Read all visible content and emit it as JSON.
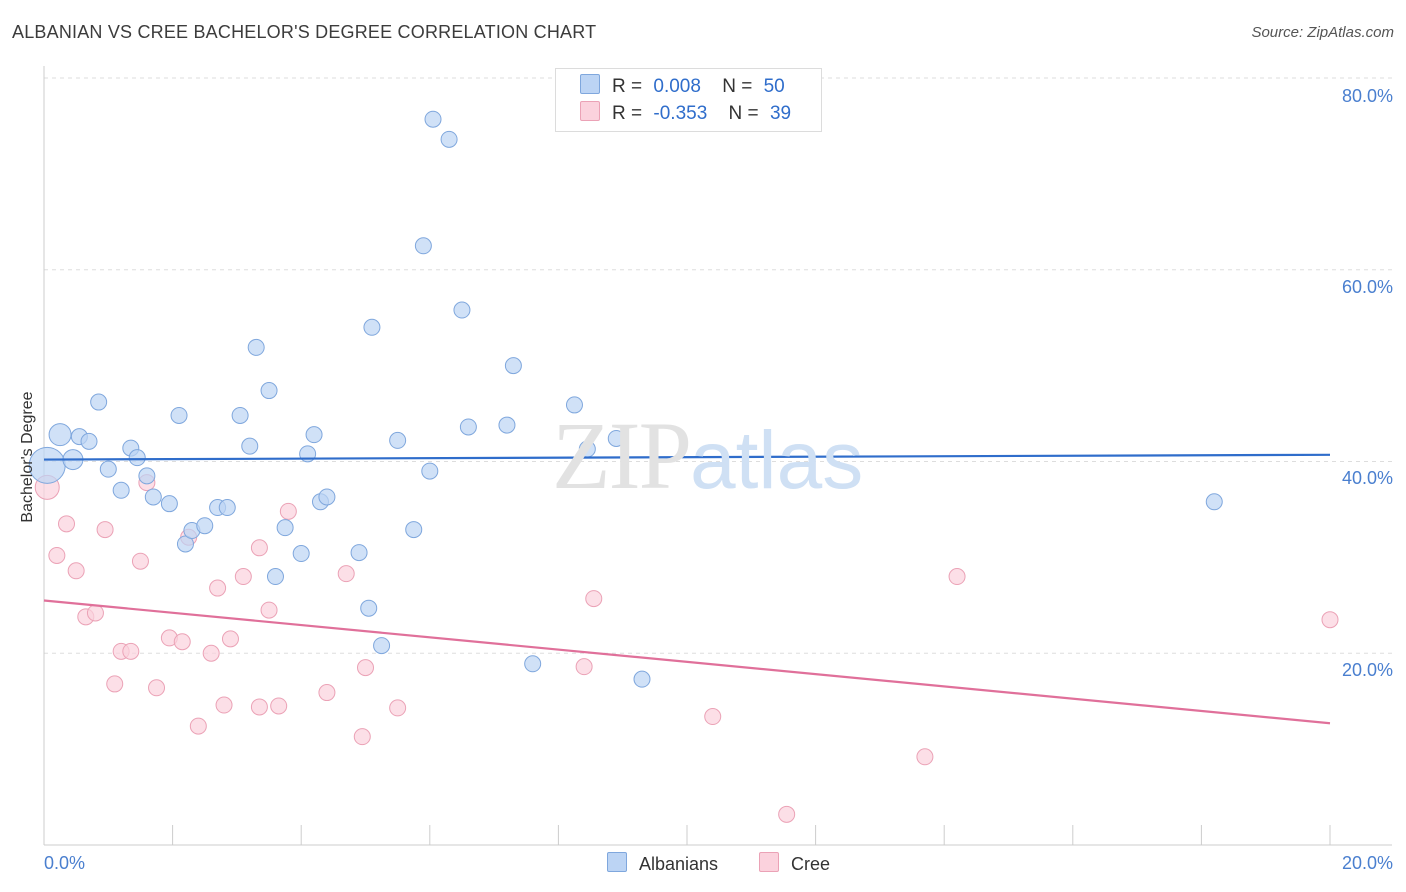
{
  "title": "ALBANIAN VS CREE BACHELOR'S DEGREE CORRELATION CHART",
  "source": "Source: ZipAtlas.com",
  "watermark": {
    "zip": "ZIP",
    "atlas": "atlas"
  },
  "stats": {
    "blue": {
      "r_label": "R =",
      "r_value": "0.008",
      "n_label": "N =",
      "n_value": "50"
    },
    "pink": {
      "r_label": "R =",
      "r_value": "-0.353",
      "n_label": "N =",
      "n_value": "39"
    }
  },
  "colors": {
    "blue_fill": "#bcd4f4",
    "blue_stroke": "#7fa7dd",
    "blue_line": "#2f6dcb",
    "pink_fill": "#fbd2dd",
    "pink_stroke": "#eba2b6",
    "pink_line": "#e0709a",
    "grid": "#dddddd",
    "axis": "#cccccc"
  },
  "chart_data": {
    "type": "scatter",
    "xlabel": "",
    "ylabel": "Bachelor's Degree",
    "xlim": [
      0,
      20
    ],
    "ylim": [
      0,
      80
    ],
    "x_ticks": [
      "0.0%",
      "20.0%"
    ],
    "y_ticks": [
      "20.0%",
      "40.0%",
      "60.0%",
      "80.0%"
    ],
    "y_tick_values": [
      20,
      40,
      60,
      80
    ],
    "grid": true,
    "legend_position": "bottom-center",
    "series": [
      {
        "name": "Albanians",
        "color": "#bcd4f4",
        "trend": [
          [
            0,
            40.2
          ],
          [
            20,
            40.7
          ]
        ],
        "points": [
          [
            0.05,
            39.6,
            18
          ],
          [
            0.25,
            42.8,
            11
          ],
          [
            0.45,
            40.2,
            10
          ],
          [
            0.55,
            42.6,
            8
          ],
          [
            0.7,
            42.1,
            8
          ],
          [
            0.85,
            46.2,
            8
          ],
          [
            1.0,
            39.2,
            8
          ],
          [
            1.2,
            37.0,
            8
          ],
          [
            1.35,
            41.4,
            8
          ],
          [
            1.45,
            40.4,
            8
          ],
          [
            1.6,
            38.5,
            8
          ],
          [
            1.7,
            36.3,
            8
          ],
          [
            1.95,
            35.6,
            8
          ],
          [
            2.1,
            44.8,
            8
          ],
          [
            2.2,
            31.4,
            8
          ],
          [
            2.3,
            32.8,
            8
          ],
          [
            2.5,
            33.3,
            8
          ],
          [
            2.7,
            35.2,
            8
          ],
          [
            2.85,
            35.2,
            8
          ],
          [
            3.05,
            44.8,
            8
          ],
          [
            3.2,
            41.6,
            8
          ],
          [
            3.3,
            51.9,
            8
          ],
          [
            3.5,
            47.4,
            8
          ],
          [
            3.6,
            28.0,
            8
          ],
          [
            3.75,
            33.1,
            8
          ],
          [
            4.0,
            30.4,
            8
          ],
          [
            4.1,
            40.8,
            8
          ],
          [
            4.2,
            42.8,
            8
          ],
          [
            4.3,
            35.8,
            8
          ],
          [
            4.4,
            36.3,
            8
          ],
          [
            4.9,
            30.5,
            8
          ],
          [
            5.05,
            24.7,
            8
          ],
          [
            5.1,
            54.0,
            8
          ],
          [
            5.25,
            20.8,
            8
          ],
          [
            5.5,
            42.2,
            8
          ],
          [
            5.75,
            32.9,
            8
          ],
          [
            5.9,
            62.5,
            8
          ],
          [
            6.0,
            39.0,
            8
          ],
          [
            6.05,
            75.7,
            8
          ],
          [
            6.3,
            73.6,
            8
          ],
          [
            6.5,
            55.8,
            8
          ],
          [
            6.6,
            43.6,
            8
          ],
          [
            7.2,
            43.8,
            8
          ],
          [
            7.3,
            50.0,
            8
          ],
          [
            7.6,
            18.9,
            8
          ],
          [
            8.25,
            45.9,
            8
          ],
          [
            8.45,
            41.3,
            8
          ],
          [
            8.9,
            42.4,
            8
          ],
          [
            9.3,
            17.3,
            8
          ],
          [
            18.2,
            35.8,
            8
          ]
        ]
      },
      {
        "name": "Cree",
        "color": "#fbd2dd",
        "trend": [
          [
            0,
            25.5
          ],
          [
            20,
            12.7
          ]
        ],
        "points": [
          [
            0.05,
            37.3,
            12
          ],
          [
            0.2,
            30.2,
            8
          ],
          [
            0.35,
            33.5,
            8
          ],
          [
            0.5,
            28.6,
            8
          ],
          [
            0.65,
            23.8,
            8
          ],
          [
            0.8,
            24.2,
            8
          ],
          [
            0.95,
            32.9,
            8
          ],
          [
            1.1,
            16.8,
            8
          ],
          [
            1.2,
            20.2,
            8
          ],
          [
            1.35,
            20.2,
            8
          ],
          [
            1.5,
            29.6,
            8
          ],
          [
            1.6,
            37.8,
            8
          ],
          [
            1.75,
            16.4,
            8
          ],
          [
            1.95,
            21.6,
            8
          ],
          [
            2.15,
            21.2,
            8
          ],
          [
            2.25,
            32.1,
            8
          ],
          [
            2.4,
            12.4,
            8
          ],
          [
            2.6,
            20.0,
            8
          ],
          [
            2.7,
            26.8,
            8
          ],
          [
            2.8,
            14.6,
            8
          ],
          [
            2.9,
            21.5,
            8
          ],
          [
            3.1,
            28.0,
            8
          ],
          [
            3.35,
            31.0,
            8
          ],
          [
            3.35,
            14.4,
            8
          ],
          [
            3.5,
            24.5,
            8
          ],
          [
            3.65,
            14.5,
            8
          ],
          [
            3.8,
            34.8,
            8
          ],
          [
            4.4,
            15.9,
            8
          ],
          [
            4.7,
            28.3,
            8
          ],
          [
            4.95,
            11.3,
            8
          ],
          [
            5.0,
            18.5,
            8
          ],
          [
            5.5,
            14.3,
            8
          ],
          [
            8.4,
            18.6,
            8
          ],
          [
            8.55,
            25.7,
            8
          ],
          [
            10.4,
            13.4,
            8
          ],
          [
            11.55,
            3.2,
            8
          ],
          [
            13.7,
            9.2,
            8
          ],
          [
            14.2,
            28.0,
            8
          ],
          [
            20.0,
            23.5,
            8
          ]
        ]
      }
    ]
  }
}
